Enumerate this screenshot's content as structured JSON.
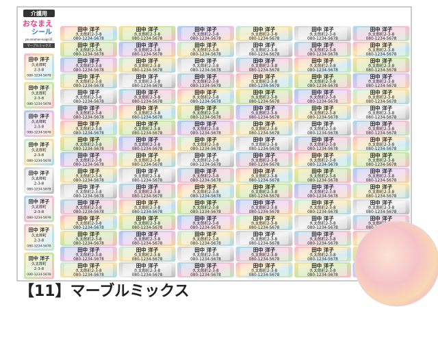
{
  "logo": {
    "tag": "介護用",
    "title_1": "おなまえ",
    "title_2": "シール",
    "url": "pe.onamae-kaigo11",
    "variant": "マーブルミックス"
  },
  "label": {
    "name": "田中 洋子",
    "address": "久太郎町2-3-8",
    "phone": "080-1234-5678"
  },
  "side_label": {
    "name": "田中 洋子",
    "address": "久太郎町",
    "block": "2-3-8",
    "phone": "080-1234-5678"
  },
  "caption": "【11】マーブルミックス"
}
